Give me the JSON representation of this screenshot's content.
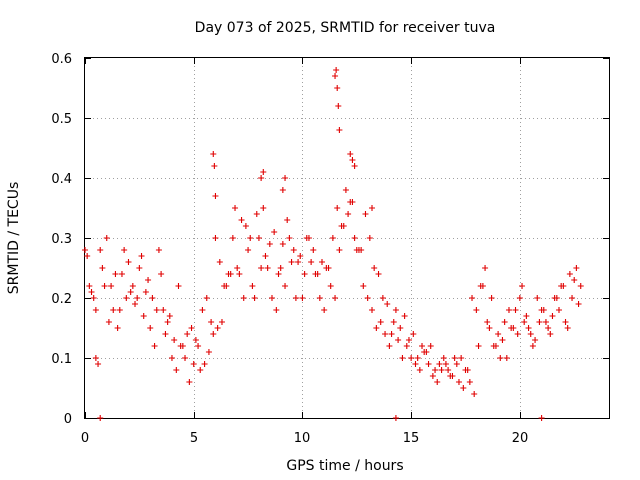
{
  "chart_data": {
    "type": "scatter",
    "title": "Day 073 of 2025, SRMTID for receiver tuva",
    "xlabel": "GPS time / hours",
    "ylabel": "SRMTID / TECUs",
    "xlim": [
      0,
      24.1
    ],
    "ylim": [
      0,
      0.6
    ],
    "xticks": [
      0,
      5,
      10,
      15,
      20
    ],
    "yticks": [
      0,
      0.1,
      0.2,
      0.3,
      0.4,
      0.5,
      0.6
    ],
    "xtick_labels": [
      "0",
      "5",
      "10",
      "15",
      "20"
    ],
    "ytick_labels": [
      "0",
      "0.1",
      "0.2",
      "0.3",
      "0.4",
      "0.5",
      "0.6"
    ],
    "grid": true,
    "marker": "plus",
    "color": "#e00000",
    "series": [
      {
        "name": "SRMTID",
        "x": [
          0.0,
          0.2,
          0.4,
          0.5,
          0.6,
          0.8,
          1.0,
          1.2,
          1.4,
          1.6,
          1.8,
          2.0,
          2.2,
          2.4,
          2.6,
          2.8,
          3.0,
          3.2,
          3.4,
          3.6,
          3.8,
          4.0,
          4.2,
          4.4,
          4.6,
          4.8,
          5.0,
          5.2,
          5.4,
          5.6,
          5.8,
          6.0,
          6.2,
          6.4,
          6.6,
          6.8,
          7.0,
          7.2,
          7.4,
          7.6,
          7.8,
          8.0,
          8.2,
          8.4,
          8.6,
          8.8,
          9.0,
          9.2,
          9.4,
          9.6,
          9.8,
          10.0,
          10.2,
          10.4,
          10.6,
          10.8,
          11.0,
          11.2,
          11.4,
          11.6,
          11.8,
          12.0,
          12.2,
          12.4,
          12.6,
          12.8,
          13.0,
          13.2,
          13.4,
          13.6,
          13.8,
          14.0,
          14.2,
          14.4,
          14.6,
          14.8,
          15.0,
          15.2,
          15.4,
          15.6,
          15.8,
          16.0,
          16.2,
          16.4,
          16.6,
          16.8,
          17.0,
          17.2,
          17.4,
          17.6,
          17.8,
          18.0,
          18.2,
          18.4,
          18.6,
          18.8,
          19.0,
          19.2,
          19.4,
          19.6,
          19.8,
          20.0,
          20.2,
          20.4,
          20.6,
          20.8,
          21.0,
          21.2,
          21.4,
          21.6,
          21.8,
          22.0,
          22.2,
          22.4,
          22.6,
          22.8,
          0.1,
          0.3,
          0.5,
          0.7,
          0.9,
          1.1,
          1.3,
          1.5,
          1.7,
          1.9,
          2.1,
          2.3,
          2.5,
          2.7,
          2.9,
          3.1,
          3.3,
          3.5,
          3.7,
          3.9,
          4.1,
          4.3,
          4.5,
          4.7,
          4.9,
          5.1,
          5.3,
          5.5,
          5.7,
          5.9,
          6.1,
          6.3,
          6.5,
          6.7,
          6.9,
          7.1,
          7.3,
          7.5,
          7.7,
          7.9,
          8.1,
          8.3,
          8.5,
          8.7,
          8.9,
          9.1,
          9.3,
          9.5,
          9.7,
          9.9,
          10.1,
          10.3,
          10.5,
          10.7,
          10.9,
          11.1,
          11.3,
          11.5,
          11.7,
          11.9,
          12.1,
          12.3,
          12.5,
          12.7,
          12.9,
          13.1,
          13.3,
          13.5,
          13.7,
          13.9,
          14.1,
          14.3,
          14.5,
          14.7,
          14.9,
          15.1,
          15.3,
          15.5,
          15.7,
          15.9,
          16.1,
          16.3,
          16.5,
          16.7,
          16.9,
          17.1,
          17.3,
          17.5,
          17.7,
          17.9,
          18.1,
          18.3,
          18.5,
          18.7,
          18.9,
          19.1,
          19.3,
          19.5,
          19.7,
          19.9,
          20.1,
          20.3,
          20.5,
          20.7,
          20.9,
          21.1,
          21.3,
          21.5,
          21.7,
          21.9,
          22.1,
          22.3,
          22.5,
          22.7,
          5.9,
          5.95,
          6.0,
          8.1,
          8.2,
          9.1,
          9.2,
          11.5,
          11.55,
          11.6,
          11.65,
          11.7,
          12.2,
          12.3,
          12.4,
          13.2,
          0.7,
          14.3,
          21.0
        ],
        "y": [
          0.28,
          0.22,
          0.2,
          0.1,
          0.09,
          0.25,
          0.3,
          0.22,
          0.24,
          0.18,
          0.28,
          0.26,
          0.22,
          0.2,
          0.27,
          0.21,
          0.15,
          0.12,
          0.28,
          0.18,
          0.16,
          0.1,
          0.08,
          0.12,
          0.1,
          0.06,
          0.09,
          0.12,
          0.18,
          0.2,
          0.16,
          0.3,
          0.26,
          0.22,
          0.24,
          0.3,
          0.25,
          0.33,
          0.32,
          0.3,
          0.2,
          0.3,
          0.35,
          0.25,
          0.2,
          0.18,
          0.25,
          0.22,
          0.3,
          0.28,
          0.26,
          0.2,
          0.3,
          0.26,
          0.24,
          0.2,
          0.18,
          0.25,
          0.3,
          0.35,
          0.32,
          0.38,
          0.36,
          0.3,
          0.28,
          0.22,
          0.2,
          0.18,
          0.15,
          0.16,
          0.14,
          0.12,
          0.16,
          0.13,
          0.1,
          0.12,
          0.1,
          0.09,
          0.08,
          0.11,
          0.09,
          0.07,
          0.06,
          0.08,
          0.09,
          0.07,
          0.1,
          0.06,
          0.05,
          0.08,
          0.2,
          0.18,
          0.22,
          0.25,
          0.15,
          0.12,
          0.14,
          0.13,
          0.1,
          0.15,
          0.18,
          0.2,
          0.16,
          0.15,
          0.12,
          0.2,
          0.18,
          0.16,
          0.14,
          0.2,
          0.18,
          0.22,
          0.15,
          0.2,
          0.25,
          0.22,
          0.27,
          0.21,
          0.18,
          0.28,
          0.22,
          0.16,
          0.18,
          0.15,
          0.24,
          0.2,
          0.21,
          0.19,
          0.25,
          0.17,
          0.23,
          0.2,
          0.18,
          0.24,
          0.14,
          0.17,
          0.13,
          0.22,
          0.12,
          0.14,
          0.15,
          0.13,
          0.08,
          0.09,
          0.11,
          0.14,
          0.15,
          0.16,
          0.22,
          0.24,
          0.35,
          0.24,
          0.2,
          0.28,
          0.22,
          0.34,
          0.25,
          0.27,
          0.29,
          0.31,
          0.24,
          0.29,
          0.33,
          0.26,
          0.2,
          0.27,
          0.24,
          0.3,
          0.28,
          0.24,
          0.26,
          0.25,
          0.22,
          0.2,
          0.28,
          0.32,
          0.34,
          0.36,
          0.28,
          0.28,
          0.34,
          0.3,
          0.25,
          0.24,
          0.2,
          0.19,
          0.14,
          0.18,
          0.15,
          0.17,
          0.13,
          0.14,
          0.1,
          0.12,
          0.11,
          0.12,
          0.08,
          0.09,
          0.1,
          0.08,
          0.07,
          0.09,
          0.1,
          0.08,
          0.06,
          0.04,
          0.12,
          0.22,
          0.16,
          0.2,
          0.12,
          0.1,
          0.16,
          0.18,
          0.15,
          0.14,
          0.22,
          0.17,
          0.14,
          0.13,
          0.16,
          0.18,
          0.15,
          0.17,
          0.2,
          0.22,
          0.16,
          0.24,
          0.23,
          0.19,
          0.44,
          0.42,
          0.37,
          0.4,
          0.41,
          0.38,
          0.4,
          0.57,
          0.58,
          0.55,
          0.52,
          0.48,
          0.44,
          0.43,
          0.42,
          0.35,
          0.0,
          0.0,
          0.0
        ]
      }
    ]
  }
}
